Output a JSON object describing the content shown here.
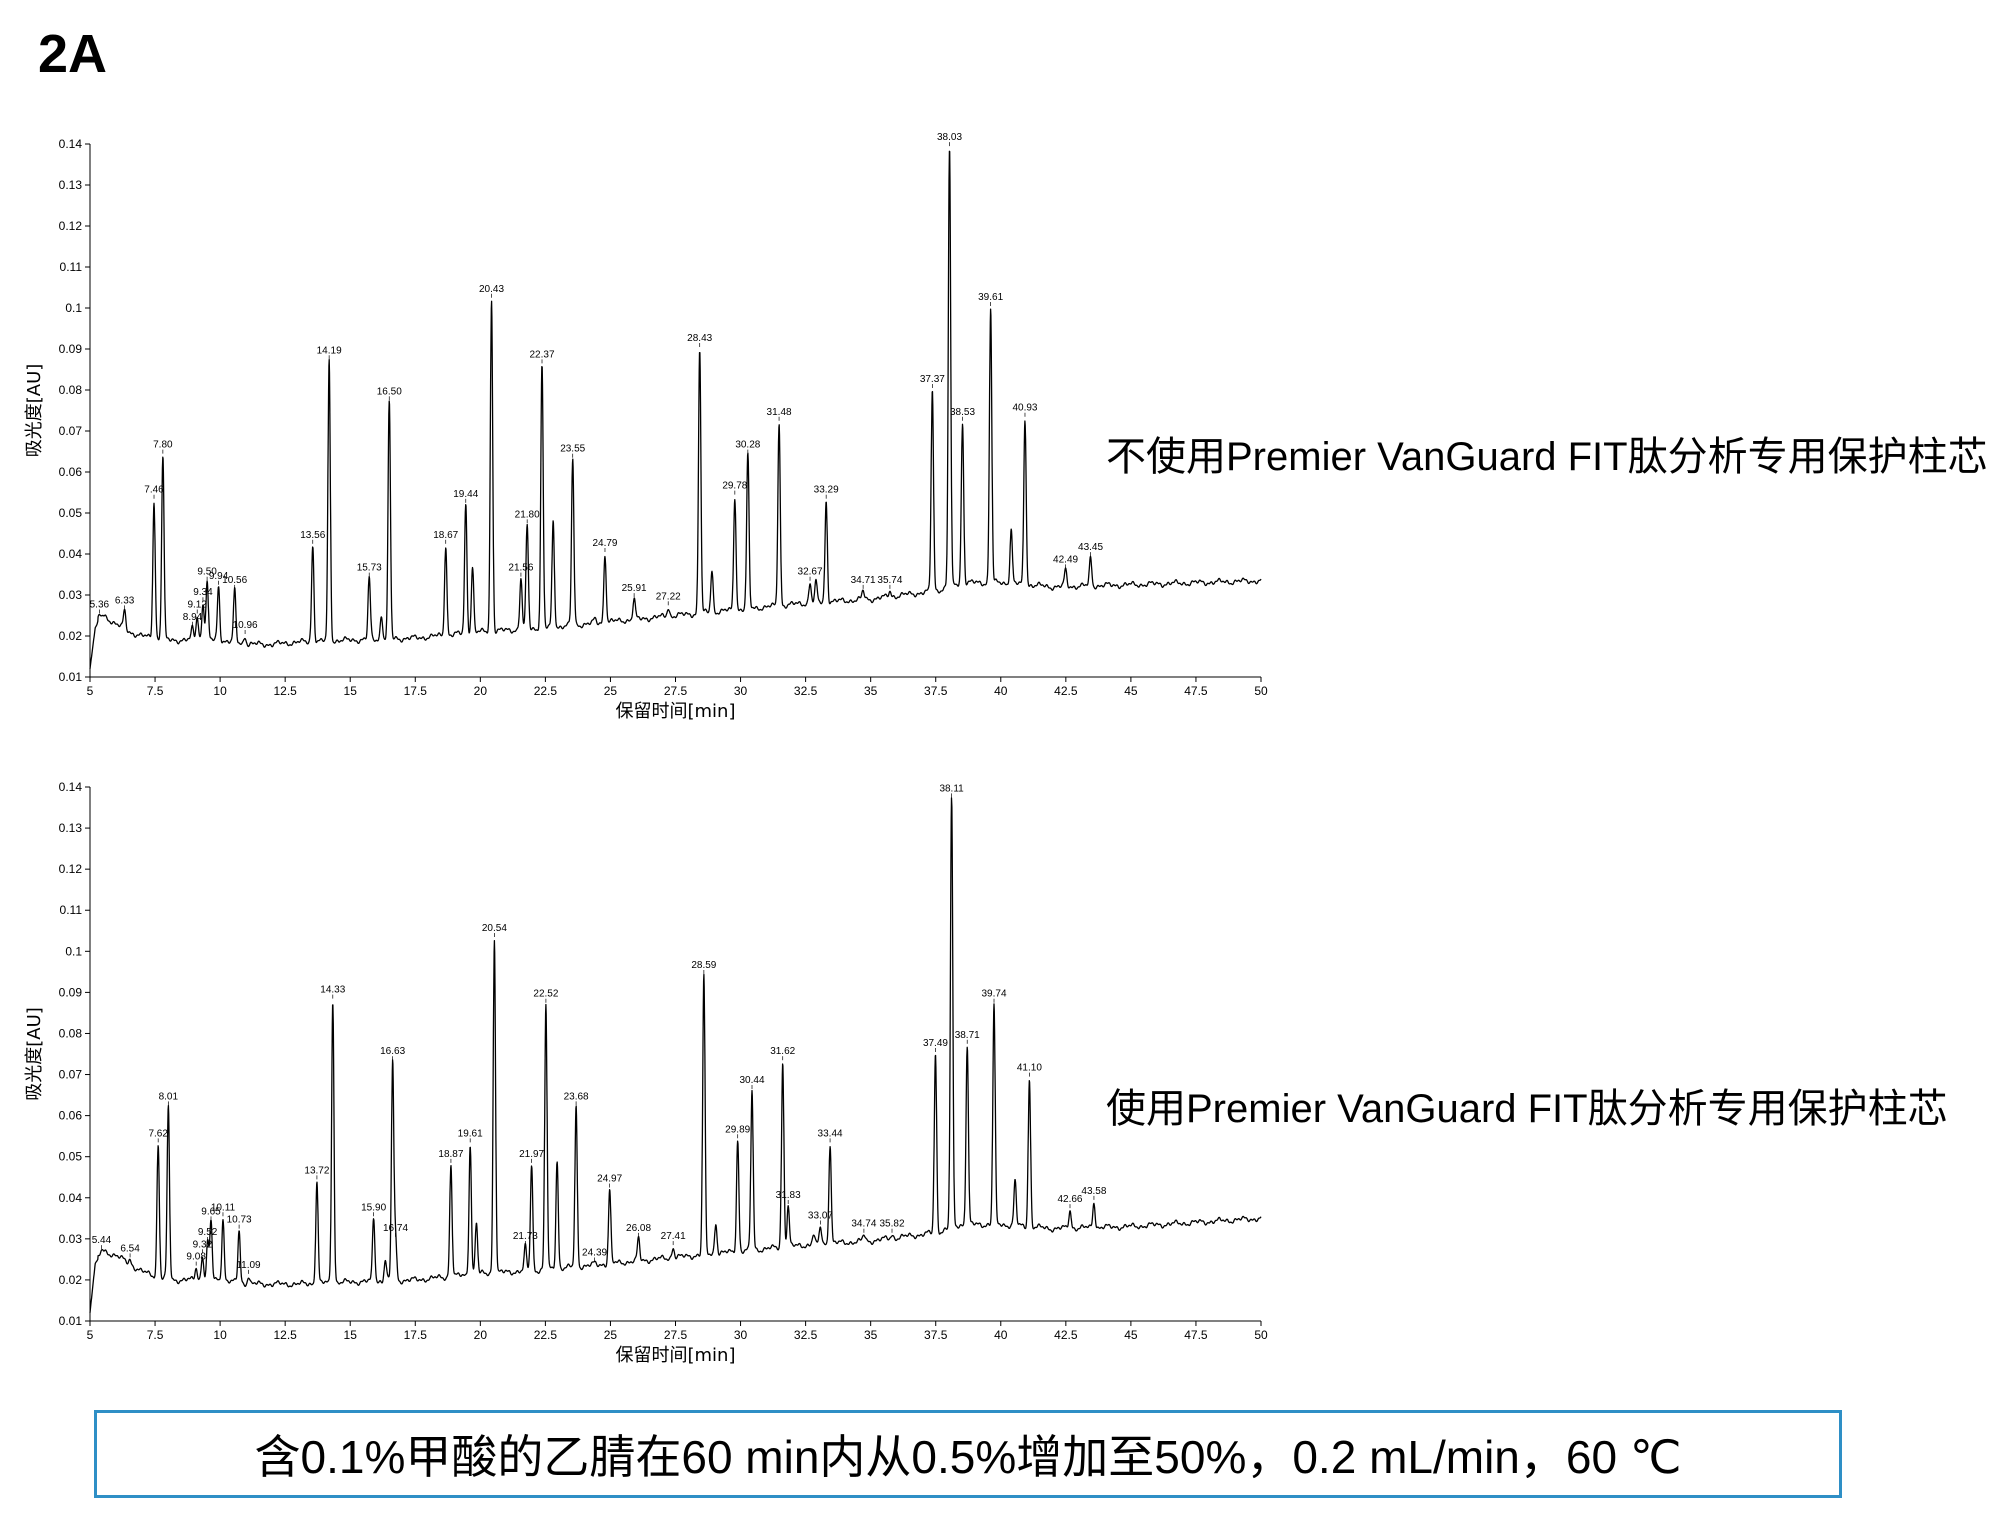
{
  "figure_label": "2A",
  "conditions": "含0.1%甲酸的乙腈在60 min内从0.5%增加至50%，0.2 mL/min，60 ℃",
  "colors": {
    "trace": "#000000",
    "box_border": "#2e8fc6"
  },
  "chart_data": [
    {
      "type": "line",
      "caption": "不使用Premier VanGuard FIT肽分析专用保护柱芯",
      "xlabel": "保留时间[min]",
      "ylabel": "吸光度[AU]",
      "xlim": [
        5,
        50
      ],
      "ylim": [
        0.01,
        0.14
      ],
      "x_ticks": [
        "5",
        "7.5",
        "10",
        "12.5",
        "15",
        "17.5",
        "20",
        "22.5",
        "25",
        "27.5",
        "30",
        "32.5",
        "35",
        "37.5",
        "40",
        "42.5",
        "45",
        "47.5",
        "50"
      ],
      "y_ticks": [
        "0.01",
        "0.02",
        "0.03",
        "0.04",
        "0.05",
        "0.06",
        "0.07",
        "0.08",
        "0.09",
        "0.1",
        "0.11",
        "0.12",
        "0.13",
        "0.14"
      ],
      "grid": false,
      "baseline": [
        [
          5,
          0.012
        ],
        [
          5.2,
          0.022
        ],
        [
          5.5,
          0.025
        ],
        [
          6,
          0.023
        ],
        [
          6.5,
          0.021
        ],
        [
          7,
          0.02
        ],
        [
          8,
          0.019
        ],
        [
          9,
          0.019
        ],
        [
          10,
          0.019
        ],
        [
          11,
          0.018
        ],
        [
          12,
          0.018
        ],
        [
          13,
          0.0185
        ],
        [
          15,
          0.019
        ],
        [
          17.5,
          0.0195
        ],
        [
          20,
          0.021
        ],
        [
          22.5,
          0.022
        ],
        [
          25,
          0.0235
        ],
        [
          27.5,
          0.025
        ],
        [
          30,
          0.0265
        ],
        [
          32.5,
          0.028
        ],
        [
          35,
          0.029
        ],
        [
          37.5,
          0.031
        ],
        [
          38.5,
          0.033
        ],
        [
          40,
          0.033
        ],
        [
          41,
          0.0325
        ],
        [
          42,
          0.032
        ],
        [
          45,
          0.0325
        ],
        [
          50,
          0.0335
        ]
      ],
      "peaks": [
        {
          "label": "5.36",
          "rt": 5.36,
          "height": 0.025
        },
        {
          "label": "6.33",
          "rt": 6.33,
          "height": 0.026
        },
        {
          "label": "7.46",
          "rt": 7.46,
          "height": 0.053
        },
        {
          "label": "7.80",
          "rt": 7.8,
          "height": 0.064
        },
        {
          "label": "8.94",
          "rt": 8.94,
          "height": 0.022
        },
        {
          "label": "9.12",
          "rt": 9.12,
          "height": 0.025
        },
        {
          "label": "9.34",
          "rt": 9.34,
          "height": 0.028
        },
        {
          "label": "9.50",
          "rt": 9.5,
          "height": 0.033
        },
        {
          "label": "9.94",
          "rt": 9.94,
          "height": 0.032
        },
        {
          "label": "10.56",
          "rt": 10.56,
          "height": 0.031
        },
        {
          "label": "10.96",
          "rt": 10.96,
          "height": 0.02
        },
        {
          "label": "13.56",
          "rt": 13.56,
          "height": 0.042
        },
        {
          "label": "14.19",
          "rt": 14.19,
          "height": 0.087
        },
        {
          "label": "15.73",
          "rt": 15.73,
          "height": 0.034
        },
        {
          "label": "16.50",
          "rt": 16.5,
          "height": 0.077
        },
        {
          "label": "18.67",
          "rt": 18.67,
          "height": 0.042
        },
        {
          "label": "19.44",
          "rt": 19.44,
          "height": 0.052
        },
        {
          "label": "20.43",
          "rt": 20.43,
          "height": 0.102
        },
        {
          "label": "21.56",
          "rt": 21.56,
          "height": 0.034
        },
        {
          "label": "21.80",
          "rt": 21.8,
          "height": 0.047
        },
        {
          "label": "22.37",
          "rt": 22.37,
          "height": 0.086
        },
        {
          "label": "23.55",
          "rt": 23.55,
          "height": 0.063
        },
        {
          "label": "24.79",
          "rt": 24.79,
          "height": 0.04
        },
        {
          "label": "25.91",
          "rt": 25.91,
          "height": 0.029
        },
        {
          "label": "27.22",
          "rt": 27.22,
          "height": 0.027
        },
        {
          "label": "28.43",
          "rt": 28.43,
          "height": 0.09
        },
        {
          "label": "29.78",
          "rt": 29.78,
          "height": 0.054
        },
        {
          "label": "30.28",
          "rt": 30.28,
          "height": 0.064
        },
        {
          "label": "31.48",
          "rt": 31.48,
          "height": 0.072
        },
        {
          "label": "32.67",
          "rt": 32.67,
          "height": 0.033
        },
        {
          "label": "33.29",
          "rt": 33.29,
          "height": 0.053
        },
        {
          "label": "34.71",
          "rt": 34.71,
          "height": 0.031
        },
        {
          "label": "35.74",
          "rt": 35.74,
          "height": 0.031
        },
        {
          "label": "37.37",
          "rt": 37.37,
          "height": 0.08
        },
        {
          "label": "38.03",
          "rt": 38.03,
          "height": 0.139
        },
        {
          "label": "38.53",
          "rt": 38.53,
          "height": 0.072
        },
        {
          "label": "39.61",
          "rt": 39.61,
          "height": 0.1
        },
        {
          "label": "40.93",
          "rt": 40.93,
          "height": 0.073
        },
        {
          "label": "42.49",
          "rt": 42.49,
          "height": 0.036
        },
        {
          "label": "43.45",
          "rt": 43.45,
          "height": 0.039
        }
      ],
      "unlabeled_peaks": [
        {
          "rt": 16.2,
          "height": 0.025
        },
        {
          "rt": 19.7,
          "height": 0.037
        },
        {
          "rt": 22.8,
          "height": 0.048
        },
        {
          "rt": 24.4,
          "height": 0.024
        },
        {
          "rt": 28.9,
          "height": 0.036
        },
        {
          "rt": 32.9,
          "height": 0.033
        },
        {
          "rt": 40.4,
          "height": 0.046
        }
      ]
    },
    {
      "type": "line",
      "caption": "使用Premier VanGuard FIT肽分析专用保护柱芯",
      "xlabel": "保留时间[min]",
      "ylabel": "吸光度[AU]",
      "xlim": [
        5,
        50
      ],
      "ylim": [
        0.01,
        0.14
      ],
      "x_ticks": [
        "5",
        "7.5",
        "10",
        "12.5",
        "15",
        "17.5",
        "20",
        "22.5",
        "25",
        "27.5",
        "30",
        "32.5",
        "35",
        "37.5",
        "40",
        "42.5",
        "45",
        "47.5",
        "50"
      ],
      "y_ticks": [
        "0.01",
        "0.02",
        "0.03",
        "0.04",
        "0.05",
        "0.06",
        "0.07",
        "0.08",
        "0.09",
        "0.1",
        "0.11",
        "0.12",
        "0.13",
        "0.14"
      ],
      "grid": false,
      "baseline": [
        [
          5,
          0.012
        ],
        [
          5.2,
          0.024
        ],
        [
          5.5,
          0.027
        ],
        [
          6,
          0.026
        ],
        [
          6.5,
          0.024
        ],
        [
          7,
          0.022
        ],
        [
          8,
          0.02
        ],
        [
          9,
          0.02
        ],
        [
          10,
          0.02
        ],
        [
          11,
          0.019
        ],
        [
          12,
          0.019
        ],
        [
          13,
          0.019
        ],
        [
          15,
          0.0195
        ],
        [
          17.5,
          0.02
        ],
        [
          20,
          0.0215
        ],
        [
          22.5,
          0.0225
        ],
        [
          25,
          0.024
        ],
        [
          27.5,
          0.0255
        ],
        [
          30,
          0.027
        ],
        [
          32.5,
          0.0285
        ],
        [
          35,
          0.0295
        ],
        [
          37.5,
          0.0315
        ],
        [
          38.5,
          0.0335
        ],
        [
          40,
          0.0335
        ],
        [
          41,
          0.033
        ],
        [
          42,
          0.0325
        ],
        [
          45,
          0.033
        ],
        [
          50,
          0.035
        ]
      ],
      "peaks": [
        {
          "label": "5.44",
          "rt": 5.44,
          "height": 0.027
        },
        {
          "label": "6.54",
          "rt": 6.54,
          "height": 0.025
        },
        {
          "label": "7.62",
          "rt": 7.62,
          "height": 0.053
        },
        {
          "label": "8.01",
          "rt": 8.01,
          "height": 0.062
        },
        {
          "label": "9.08",
          "rt": 9.08,
          "height": 0.023
        },
        {
          "label": "9.32",
          "rt": 9.32,
          "height": 0.026
        },
        {
          "label": "9.52",
          "rt": 9.52,
          "height": 0.029
        },
        {
          "label": "9.65",
          "rt": 9.65,
          "height": 0.034
        },
        {
          "label": "10.11",
          "rt": 10.11,
          "height": 0.035
        },
        {
          "label": "10.73",
          "rt": 10.73,
          "height": 0.032
        },
        {
          "label": "11.09",
          "rt": 11.09,
          "height": 0.021
        },
        {
          "label": "13.72",
          "rt": 13.72,
          "height": 0.044
        },
        {
          "label": "14.33",
          "rt": 14.33,
          "height": 0.088
        },
        {
          "label": "15.90",
          "rt": 15.9,
          "height": 0.035
        },
        {
          "label": "16.63",
          "rt": 16.63,
          "height": 0.073
        },
        {
          "label": "16.74",
          "rt": 16.74,
          "height": 0.03
        },
        {
          "label": "18.87",
          "rt": 18.87,
          "height": 0.048
        },
        {
          "label": "19.61",
          "rt": 19.61,
          "height": 0.053
        },
        {
          "label": "20.54",
          "rt": 20.54,
          "height": 0.103
        },
        {
          "label": "21.73",
          "rt": 21.73,
          "height": 0.028
        },
        {
          "label": "21.97",
          "rt": 21.97,
          "height": 0.048
        },
        {
          "label": "22.52",
          "rt": 22.52,
          "height": 0.087
        },
        {
          "label": "23.68",
          "rt": 23.68,
          "height": 0.062
        },
        {
          "label": "24.39",
          "rt": 24.39,
          "height": 0.024
        },
        {
          "label": "24.97",
          "rt": 24.97,
          "height": 0.042
        },
        {
          "label": "26.08",
          "rt": 26.08,
          "height": 0.03
        },
        {
          "label": "27.41",
          "rt": 27.41,
          "height": 0.028
        },
        {
          "label": "28.59",
          "rt": 28.59,
          "height": 0.094
        },
        {
          "label": "29.89",
          "rt": 29.89,
          "height": 0.054
        },
        {
          "label": "30.44",
          "rt": 30.44,
          "height": 0.066
        },
        {
          "label": "31.62",
          "rt": 31.62,
          "height": 0.073
        },
        {
          "label": "31.83",
          "rt": 31.83,
          "height": 0.038
        },
        {
          "label": "33.07",
          "rt": 33.07,
          "height": 0.033
        },
        {
          "label": "33.44",
          "rt": 33.44,
          "height": 0.053
        },
        {
          "label": "34.74",
          "rt": 34.74,
          "height": 0.031
        },
        {
          "label": "35.82",
          "rt": 35.82,
          "height": 0.031
        },
        {
          "label": "37.49",
          "rt": 37.49,
          "height": 0.075
        },
        {
          "label": "38.11",
          "rt": 38.11,
          "height": 0.137
        },
        {
          "label": "38.71",
          "rt": 38.71,
          "height": 0.077
        },
        {
          "label": "39.74",
          "rt": 39.74,
          "height": 0.087
        },
        {
          "label": "41.10",
          "rt": 41.1,
          "height": 0.069
        },
        {
          "label": "42.66",
          "rt": 42.66,
          "height": 0.037
        },
        {
          "label": "43.58",
          "rt": 43.58,
          "height": 0.039
        }
      ],
      "unlabeled_peaks": [
        {
          "rt": 16.35,
          "height": 0.025
        },
        {
          "rt": 19.85,
          "height": 0.034
        },
        {
          "rt": 22.95,
          "height": 0.049
        },
        {
          "rt": 29.05,
          "height": 0.034
        },
        {
          "rt": 32.8,
          "height": 0.031
        },
        {
          "rt": 40.55,
          "height": 0.044
        }
      ]
    }
  ]
}
